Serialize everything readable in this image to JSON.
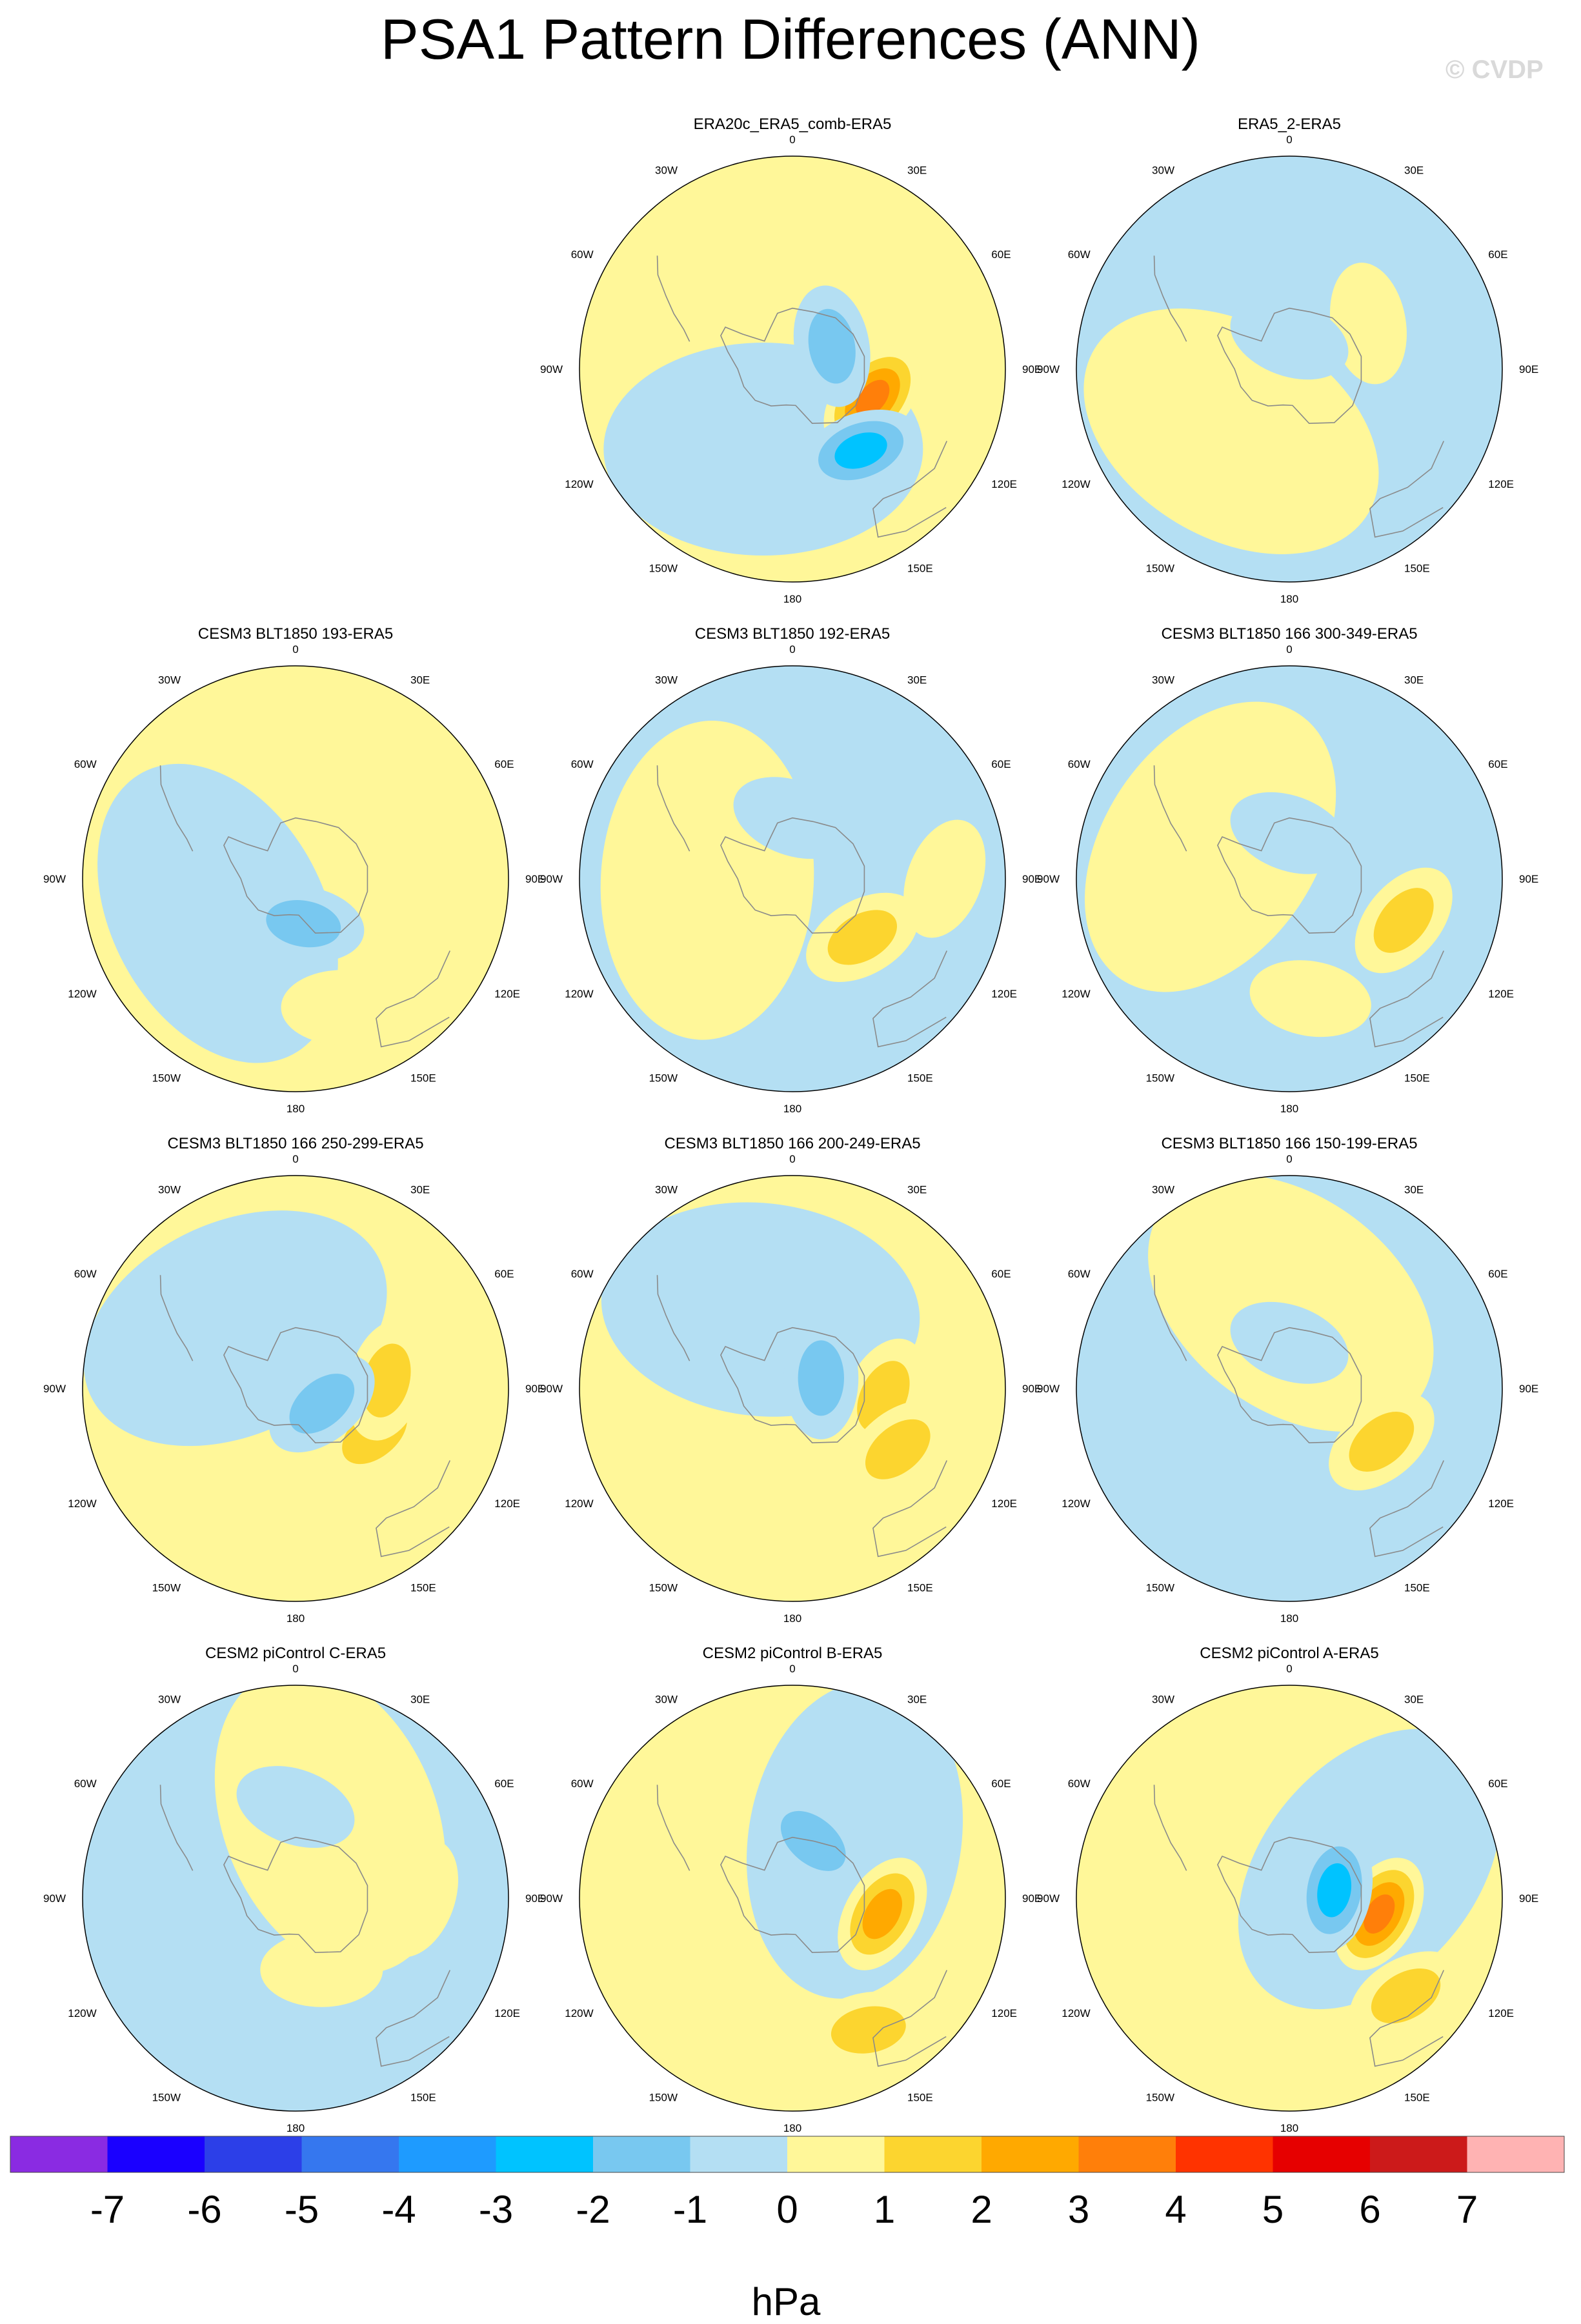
{
  "title": "PSA1 Pattern Differences (ANN)",
  "watermark": "© CVDP",
  "longitude_labels": [
    "0",
    "30E",
    "60E",
    "90E",
    "120E",
    "150E",
    "180",
    "150W",
    "120W",
    "90W",
    "60W",
    "30W"
  ],
  "colorbar": {
    "units": "hPa",
    "levels": [
      "-7",
      "-6",
      "-5",
      "-4",
      "-3",
      "-2",
      "-1",
      "0",
      "1",
      "2",
      "3",
      "4",
      "5",
      "6",
      "7"
    ],
    "colors": [
      "#8a2be2",
      "#1a00ff",
      "#2c3fe8",
      "#3577ef",
      "#1e9bff",
      "#00c3ff",
      "#78c8f0",
      "#b4dff3",
      "#fff799",
      "#fcd52f",
      "#ffa900",
      "#ff7f0a",
      "#ff3300",
      "#e60000",
      "#cc1a1a",
      "#ffb3b3"
    ]
  },
  "chart_data": [
    {
      "type": "heatmap",
      "projection": "polar-stereographic-south",
      "title": "ERA20c_ERA5_comb-ERA5",
      "units": "hPa",
      "features": [
        {
          "kind": "positive",
          "lon": 110,
          "lat": 62,
          "peak": 3.5
        },
        {
          "kind": "negative",
          "lon": 140,
          "lat": 55,
          "peak": -3.0
        },
        {
          "kind": "negative",
          "lon": 60,
          "lat": 75,
          "peak": -2.0
        }
      ]
    },
    {
      "type": "heatmap",
      "projection": "polar-stereographic-south",
      "title": "ERA5_2-ERA5",
      "units": "hPa",
      "features": [
        {
          "kind": "positive",
          "lon": 60,
          "lat": 60,
          "peak": 0.5
        },
        {
          "kind": "negative",
          "lon": 0,
          "lat": 80,
          "peak": -0.5
        }
      ]
    },
    {
      "type": "heatmap",
      "projection": "polar-stereographic-south",
      "title": "CESM3 BLT1850 193-ERA5",
      "units": "hPa",
      "features": [
        {
          "kind": "positive",
          "lon": 90,
          "lat": 55,
          "peak": 0.5
        },
        {
          "kind": "positive",
          "lon": 160,
          "lat": 45,
          "peak": 0.5
        },
        {
          "kind": "negative",
          "lon": 170,
          "lat": 75,
          "peak": -1.5
        }
      ]
    },
    {
      "type": "heatmap",
      "projection": "polar-stereographic-south",
      "title": "CESM3 BLT1850 192-ERA5",
      "units": "hPa",
      "features": [
        {
          "kind": "positive",
          "lon": 130,
          "lat": 60,
          "peak": 1.5
        },
        {
          "kind": "positive",
          "lon": 90,
          "lat": 40,
          "peak": 0.5
        },
        {
          "kind": "negative",
          "lon": 0,
          "lat": 70,
          "peak": -0.5
        }
      ]
    },
    {
      "type": "heatmap",
      "projection": "polar-stereographic-south",
      "title": "CESM3 BLT1850 166 300-349-ERA5",
      "units": "hPa",
      "features": [
        {
          "kind": "positive",
          "lon": 110,
          "lat": 50,
          "peak": 1.5
        },
        {
          "kind": "positive",
          "lon": 170,
          "lat": 50,
          "peak": 0.5
        },
        {
          "kind": "negative",
          "lon": 0,
          "lat": 75,
          "peak": -0.5
        }
      ]
    },
    {
      "type": "heatmap",
      "projection": "polar-stereographic-south",
      "title": "CESM3 BLT1850 166 250-299-ERA5",
      "units": "hPa",
      "features": [
        {
          "kind": "positive",
          "lon": 120,
          "lat": 60,
          "peak": 1.5
        },
        {
          "kind": "positive",
          "lon": 85,
          "lat": 60,
          "peak": 1.5
        },
        {
          "kind": "negative",
          "lon": 120,
          "lat": 80,
          "peak": -1.5
        }
      ]
    },
    {
      "type": "heatmap",
      "projection": "polar-stereographic-south",
      "title": "CESM3 BLT1850 166 200-249-ERA5",
      "units": "hPa",
      "features": [
        {
          "kind": "positive",
          "lon": 95,
          "lat": 60,
          "peak": 1.5
        },
        {
          "kind": "positive",
          "lon": 120,
          "lat": 50,
          "peak": 1.5
        },
        {
          "kind": "negative",
          "lon": 70,
          "lat": 80,
          "peak": -1.5
        }
      ]
    },
    {
      "type": "heatmap",
      "projection": "polar-stereographic-south",
      "title": "CESM3 BLT1850 166 150-199-ERA5",
      "units": "hPa",
      "features": [
        {
          "kind": "positive",
          "lon": 120,
          "lat": 55,
          "peak": 1.5
        },
        {
          "kind": "negative",
          "lon": 0,
          "lat": 75,
          "peak": -0.5
        }
      ]
    },
    {
      "type": "heatmap",
      "projection": "polar-stereographic-south",
      "title": "CESM2 piControl C-ERA5",
      "units": "hPa",
      "features": [
        {
          "kind": "positive",
          "lon": 160,
          "lat": 65,
          "peak": 0.5
        },
        {
          "kind": "positive",
          "lon": 90,
          "lat": 50,
          "peak": 0.5
        },
        {
          "kind": "negative",
          "lon": 0,
          "lat": 60,
          "peak": -0.5
        }
      ]
    },
    {
      "type": "heatmap",
      "projection": "polar-stereographic-south",
      "title": "CESM2 piControl B-ERA5",
      "units": "hPa",
      "features": [
        {
          "kind": "positive",
          "lon": 100,
          "lat": 60,
          "peak": 2.5
        },
        {
          "kind": "negative",
          "lon": 20,
          "lat": 70,
          "peak": -1.5
        },
        {
          "kind": "positive",
          "lon": 150,
          "lat": 40,
          "peak": 1.5
        }
      ]
    },
    {
      "type": "heatmap",
      "projection": "polar-stereographic-south",
      "title": "CESM2 piControl A-ERA5",
      "units": "hPa",
      "features": [
        {
          "kind": "positive",
          "lon": 100,
          "lat": 60,
          "peak": 3.5
        },
        {
          "kind": "negative",
          "lon": 80,
          "lat": 75,
          "peak": -2.5
        },
        {
          "kind": "positive",
          "lon": 130,
          "lat": 40,
          "peak": 1.5
        }
      ]
    }
  ]
}
